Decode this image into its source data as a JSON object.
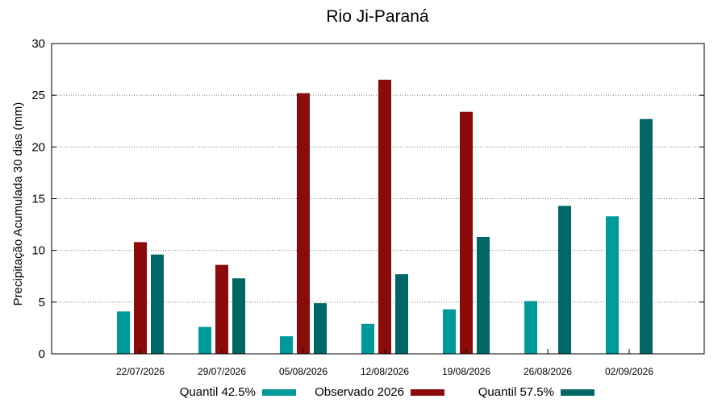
{
  "chart_data": {
    "type": "bar",
    "title": "Rio Ji-Paraná",
    "xlabel": "",
    "ylabel": "Precipitação Acumulada 30 dias (mm)",
    "ylim": [
      0,
      30
    ],
    "yticks": [
      0,
      5,
      10,
      15,
      20,
      25,
      30
    ],
    "grid": "horizontal dotted",
    "legend": "bottom",
    "categories": [
      "22/07/2026",
      "29/07/2026",
      "05/08/2026",
      "12/08/2026",
      "19/08/2026",
      "26/08/2026",
      "02/09/2026"
    ],
    "series": [
      {
        "name": "Quantil 42.5%",
        "color": "#009999",
        "values": [
          4.1,
          2.6,
          1.7,
          2.9,
          4.3,
          5.1,
          13.3
        ]
      },
      {
        "name": "Observado 2026",
        "color": "#8b0a0a",
        "values": [
          10.8,
          8.6,
          25.2,
          26.5,
          23.4,
          null,
          null
        ]
      },
      {
        "name": "Quantil 57.5%",
        "color": "#006666",
        "values": [
          9.6,
          7.3,
          4.9,
          7.7,
          11.3,
          14.3,
          22.7
        ]
      }
    ]
  }
}
